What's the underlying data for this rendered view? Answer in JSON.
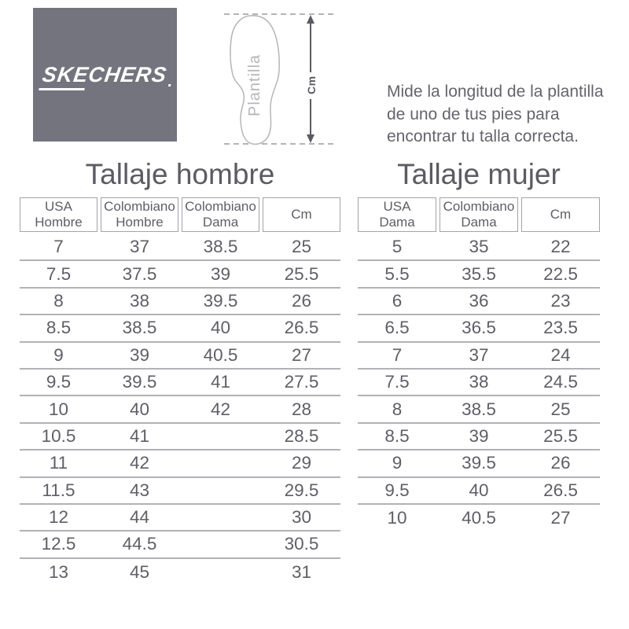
{
  "brand": {
    "wordmark": "SKECHERS",
    "logo_bg": "#74747e"
  },
  "diagram": {
    "insole_label": "Plantilla",
    "arrow_label": "Cm"
  },
  "instruction": {
    "lines": [
      "Mide la longitud de la plantilla",
      "de uno de tus pies para",
      "encontrar tu talla correcta."
    ]
  },
  "chart_data": [
    {
      "type": "table",
      "title": "Tallaje hombre",
      "columns": [
        "USA Hombre",
        "Colombiano Hombre",
        "Colombiano Dama",
        "Cm"
      ],
      "rows": [
        [
          "7",
          "37",
          "38.5",
          "25"
        ],
        [
          "7.5",
          "37.5",
          "39",
          "25.5"
        ],
        [
          "8",
          "38",
          "39.5",
          "26"
        ],
        [
          "8.5",
          "38.5",
          "40",
          "26.5"
        ],
        [
          "9",
          "39",
          "40.5",
          "27"
        ],
        [
          "9.5",
          "39.5",
          "41",
          "27.5"
        ],
        [
          "10",
          "40",
          "42",
          "28"
        ],
        [
          "10.5",
          "41",
          "",
          "28.5"
        ],
        [
          "11",
          "42",
          "",
          "29"
        ],
        [
          "11.5",
          "43",
          "",
          "29.5"
        ],
        [
          "12",
          "44",
          "",
          "30"
        ],
        [
          "12.5",
          "44.5",
          "",
          "30.5"
        ],
        [
          "13",
          "45",
          "",
          "31"
        ]
      ]
    },
    {
      "type": "table",
      "title": "Tallaje mujer",
      "columns": [
        "USA Dama",
        "Colombiano Dama",
        "Cm"
      ],
      "rows": [
        [
          "5",
          "35",
          "22"
        ],
        [
          "5.5",
          "35.5",
          "22.5"
        ],
        [
          "6",
          "36",
          "23"
        ],
        [
          "6.5",
          "36.5",
          "23.5"
        ],
        [
          "7",
          "37",
          "24"
        ],
        [
          "7.5",
          "38",
          "24.5"
        ],
        [
          "8",
          "38.5",
          "25"
        ],
        [
          "8.5",
          "39",
          "25.5"
        ],
        [
          "9",
          "39.5",
          "26"
        ],
        [
          "9.5",
          "40",
          "26.5"
        ],
        [
          "10",
          "40.5",
          "27"
        ]
      ]
    }
  ]
}
